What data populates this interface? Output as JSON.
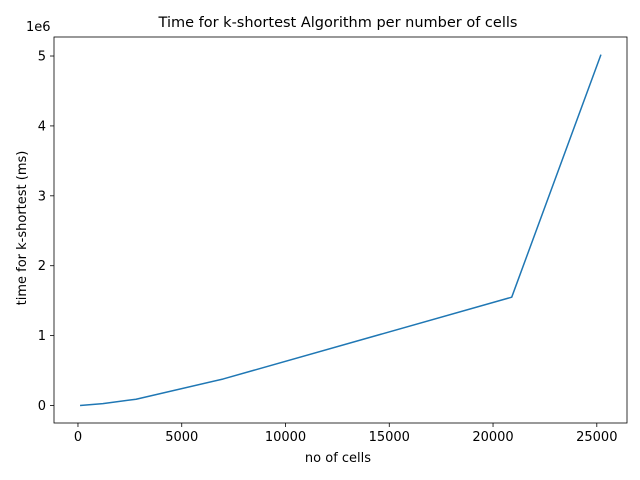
{
  "chart_data": {
    "type": "line",
    "title": "Time for k-shortest Algorithm per number of cells",
    "xlabel": "no of cells",
    "ylabel": "time for k-shortest (ms)",
    "y_offset_label": "1e6",
    "x": [
      100,
      1200,
      2800,
      7000,
      20900,
      25200
    ],
    "series": [
      {
        "values": [
          1000,
          28000,
          90000,
          380000,
          1550000,
          5020000
        ],
        "color": "#1f77b4"
      }
    ],
    "xlim": [
      -1155,
      26455
    ],
    "ylim": [
      -250000,
      5272000
    ],
    "xticks": [
      0,
      5000,
      10000,
      15000,
      20000,
      25000
    ],
    "xtick_labels": [
      "0",
      "5000",
      "10000",
      "15000",
      "20000",
      "25000"
    ],
    "yticks": [
      0,
      1000000,
      2000000,
      3000000,
      4000000,
      5000000
    ],
    "ytick_labels": [
      "0",
      "1",
      "2",
      "3",
      "4",
      "5"
    ],
    "grid": false,
    "legend": "none"
  }
}
